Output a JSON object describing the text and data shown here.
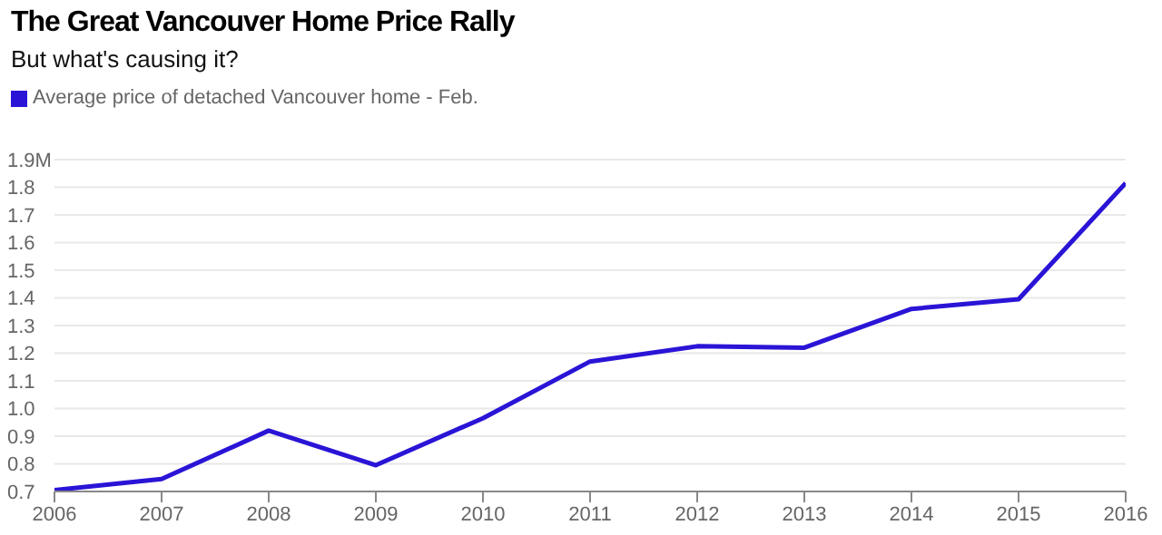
{
  "chart_data": {
    "type": "line",
    "title": "The Great Vancouver Home Price Rally",
    "subtitle": "But what's causing it?",
    "x": [
      2006,
      2007,
      2008,
      2009,
      2010,
      2011,
      2012,
      2013,
      2014,
      2015,
      2016
    ],
    "series": [
      {
        "name": "Average price of detached Vancouver home - Feb.",
        "color": "#2a14d6",
        "values": [
          0.705,
          0.745,
          0.92,
          0.795,
          0.965,
          1.17,
          1.225,
          1.22,
          1.36,
          1.395,
          1.815
        ]
      }
    ],
    "xlim": [
      2006,
      2016
    ],
    "xticks": [
      2006,
      2007,
      2008,
      2009,
      2010,
      2011,
      2012,
      2013,
      2014,
      2015,
      2016
    ],
    "ylim": [
      0.7,
      1.9
    ],
    "yticks": [
      0.7,
      0.8,
      0.9,
      {
        "value": 1,
        "label": "1.0"
      },
      1.1,
      1.2,
      1.3,
      1.4,
      1.5,
      1.6,
      1.7,
      1.8,
      {
        "value": 1.9,
        "label": "1.9M"
      }
    ],
    "grid": "y",
    "legend": "top left",
    "marker": "none",
    "line_style": "solid"
  }
}
